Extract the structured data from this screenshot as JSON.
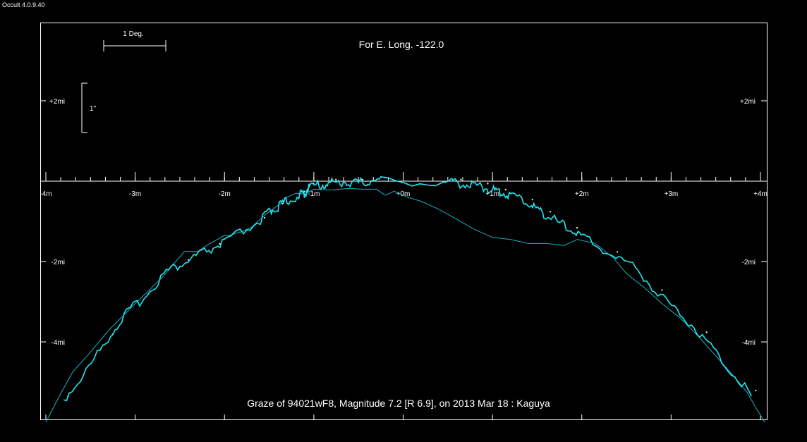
{
  "app": {
    "title": "Occult 4.0.9.40"
  },
  "chart_data": {
    "type": "line",
    "title": "For E. Long. -122.0",
    "caption": "Graze of  94021wF8,  Magnitude 7.2 [R 6.9],  on 2013 Mar 18  :  Kaguya",
    "scale_bar_label": "1 Deg.",
    "profile_scale_label": "1\"",
    "x_tick_labels": [
      "-4m",
      "-3m",
      "-2m",
      "-1m",
      "+0m",
      "+1m",
      "+2m",
      "+3m",
      "+4m"
    ],
    "x_tick_values": [
      -4,
      -3,
      -2,
      -1,
      0,
      1,
      2,
      3,
      4
    ],
    "xlim": [
      -4,
      4
    ],
    "y_tick_labels": [
      "+2mi",
      "-2mi",
      "-4mi"
    ],
    "y_tick_values": [
      2,
      -2,
      -4
    ],
    "ylim": [
      -6,
      4
    ],
    "colors": {
      "profile": "#22e5f0",
      "mean_limb": "#1ab0c0",
      "dots": "#ffffff",
      "frame": "#ffffff",
      "background": "#000000"
    },
    "series": [
      {
        "values": [
          [
            -4.0,
            -6.0
          ],
          [
            -3.85,
            -5.35
          ],
          [
            -3.7,
            -4.75
          ],
          [
            -3.5,
            -4.25
          ],
          [
            -3.3,
            -3.72
          ],
          [
            -3.0,
            -3.05
          ],
          [
            -2.7,
            -2.4
          ],
          [
            -2.45,
            -1.75
          ],
          [
            -2.3,
            -1.75
          ],
          [
            -2.2,
            -1.6
          ],
          [
            -2.0,
            -1.35
          ],
          [
            -1.95,
            -1.35
          ],
          [
            -1.8,
            -1.25
          ],
          [
            -1.7,
            -1.15
          ],
          [
            -1.55,
            -0.85
          ],
          [
            -1.4,
            -0.6
          ],
          [
            -1.3,
            -0.4
          ],
          [
            -1.2,
            -0.3
          ],
          [
            -1.1,
            -0.32
          ],
          [
            -1.0,
            -0.2
          ],
          [
            -0.8,
            -0.22
          ],
          [
            -0.6,
            -0.18
          ],
          [
            -0.45,
            -0.2
          ],
          [
            -0.3,
            -0.2
          ],
          [
            -0.2,
            -0.35
          ],
          [
            -0.1,
            -0.25
          ],
          [
            0.05,
            -0.4
          ],
          [
            0.2,
            -0.5
          ],
          [
            0.4,
            -0.7
          ],
          [
            0.6,
            -0.95
          ],
          [
            0.8,
            -1.2
          ],
          [
            1.0,
            -1.4
          ],
          [
            1.2,
            -1.45
          ],
          [
            1.4,
            -1.55
          ],
          [
            1.6,
            -1.55
          ],
          [
            1.8,
            -1.6
          ],
          [
            1.95,
            -1.45
          ],
          [
            2.15,
            -1.55
          ],
          [
            2.35,
            -1.9
          ],
          [
            2.5,
            -2.3
          ],
          [
            2.7,
            -2.65
          ],
          [
            2.9,
            -3.05
          ],
          [
            3.1,
            -3.4
          ],
          [
            3.3,
            -3.85
          ],
          [
            3.5,
            -4.35
          ],
          [
            3.7,
            -4.85
          ],
          [
            3.85,
            -5.25
          ],
          [
            3.95,
            -5.65
          ],
          [
            4.05,
            -6.0
          ]
        ]
      },
      {
        "values": [
          [
            -3.8,
            -5.5
          ],
          [
            -3.55,
            -4.8
          ],
          [
            -3.3,
            -3.95
          ],
          [
            -3.1,
            -3.35
          ],
          [
            -2.9,
            -2.95
          ],
          [
            -2.65,
            -2.3
          ],
          [
            -2.45,
            -2.1
          ],
          [
            -2.3,
            -1.9
          ],
          [
            -2.1,
            -1.7
          ],
          [
            -1.9,
            -1.45
          ],
          [
            -1.6,
            -1.05
          ],
          [
            -1.5,
            -0.8
          ],
          [
            -1.4,
            -0.7
          ],
          [
            -1.3,
            -0.55
          ],
          [
            -1.15,
            -0.4
          ],
          [
            -1.1,
            -0.35
          ],
          [
            -1.05,
            -0.2
          ],
          [
            -0.9,
            -0.15
          ],
          [
            -0.8,
            -0.1
          ],
          [
            -0.65,
            -0.08
          ],
          [
            -0.5,
            -0.1
          ],
          [
            -0.4,
            -0.08
          ],
          [
            -0.25,
            -0.05
          ],
          [
            0.45,
            -0.08
          ],
          [
            0.6,
            -0.1
          ],
          [
            0.75,
            -0.15
          ],
          [
            0.9,
            -0.2
          ],
          [
            1.0,
            -0.28
          ],
          [
            1.1,
            -0.35
          ],
          [
            1.2,
            -0.4
          ],
          [
            1.4,
            -0.6
          ],
          [
            1.5,
            -0.75
          ],
          [
            1.6,
            -0.9
          ],
          [
            1.75,
            -1.1
          ],
          [
            1.9,
            -1.3
          ],
          [
            2.05,
            -1.5
          ],
          [
            2.35,
            -1.9
          ],
          [
            2.6,
            -2.2
          ],
          [
            2.85,
            -2.85
          ],
          [
            3.1,
            -3.35
          ],
          [
            3.35,
            -3.9
          ],
          [
            3.6,
            -4.6
          ],
          [
            3.9,
            -5.35
          ]
        ]
      }
    ]
  }
}
